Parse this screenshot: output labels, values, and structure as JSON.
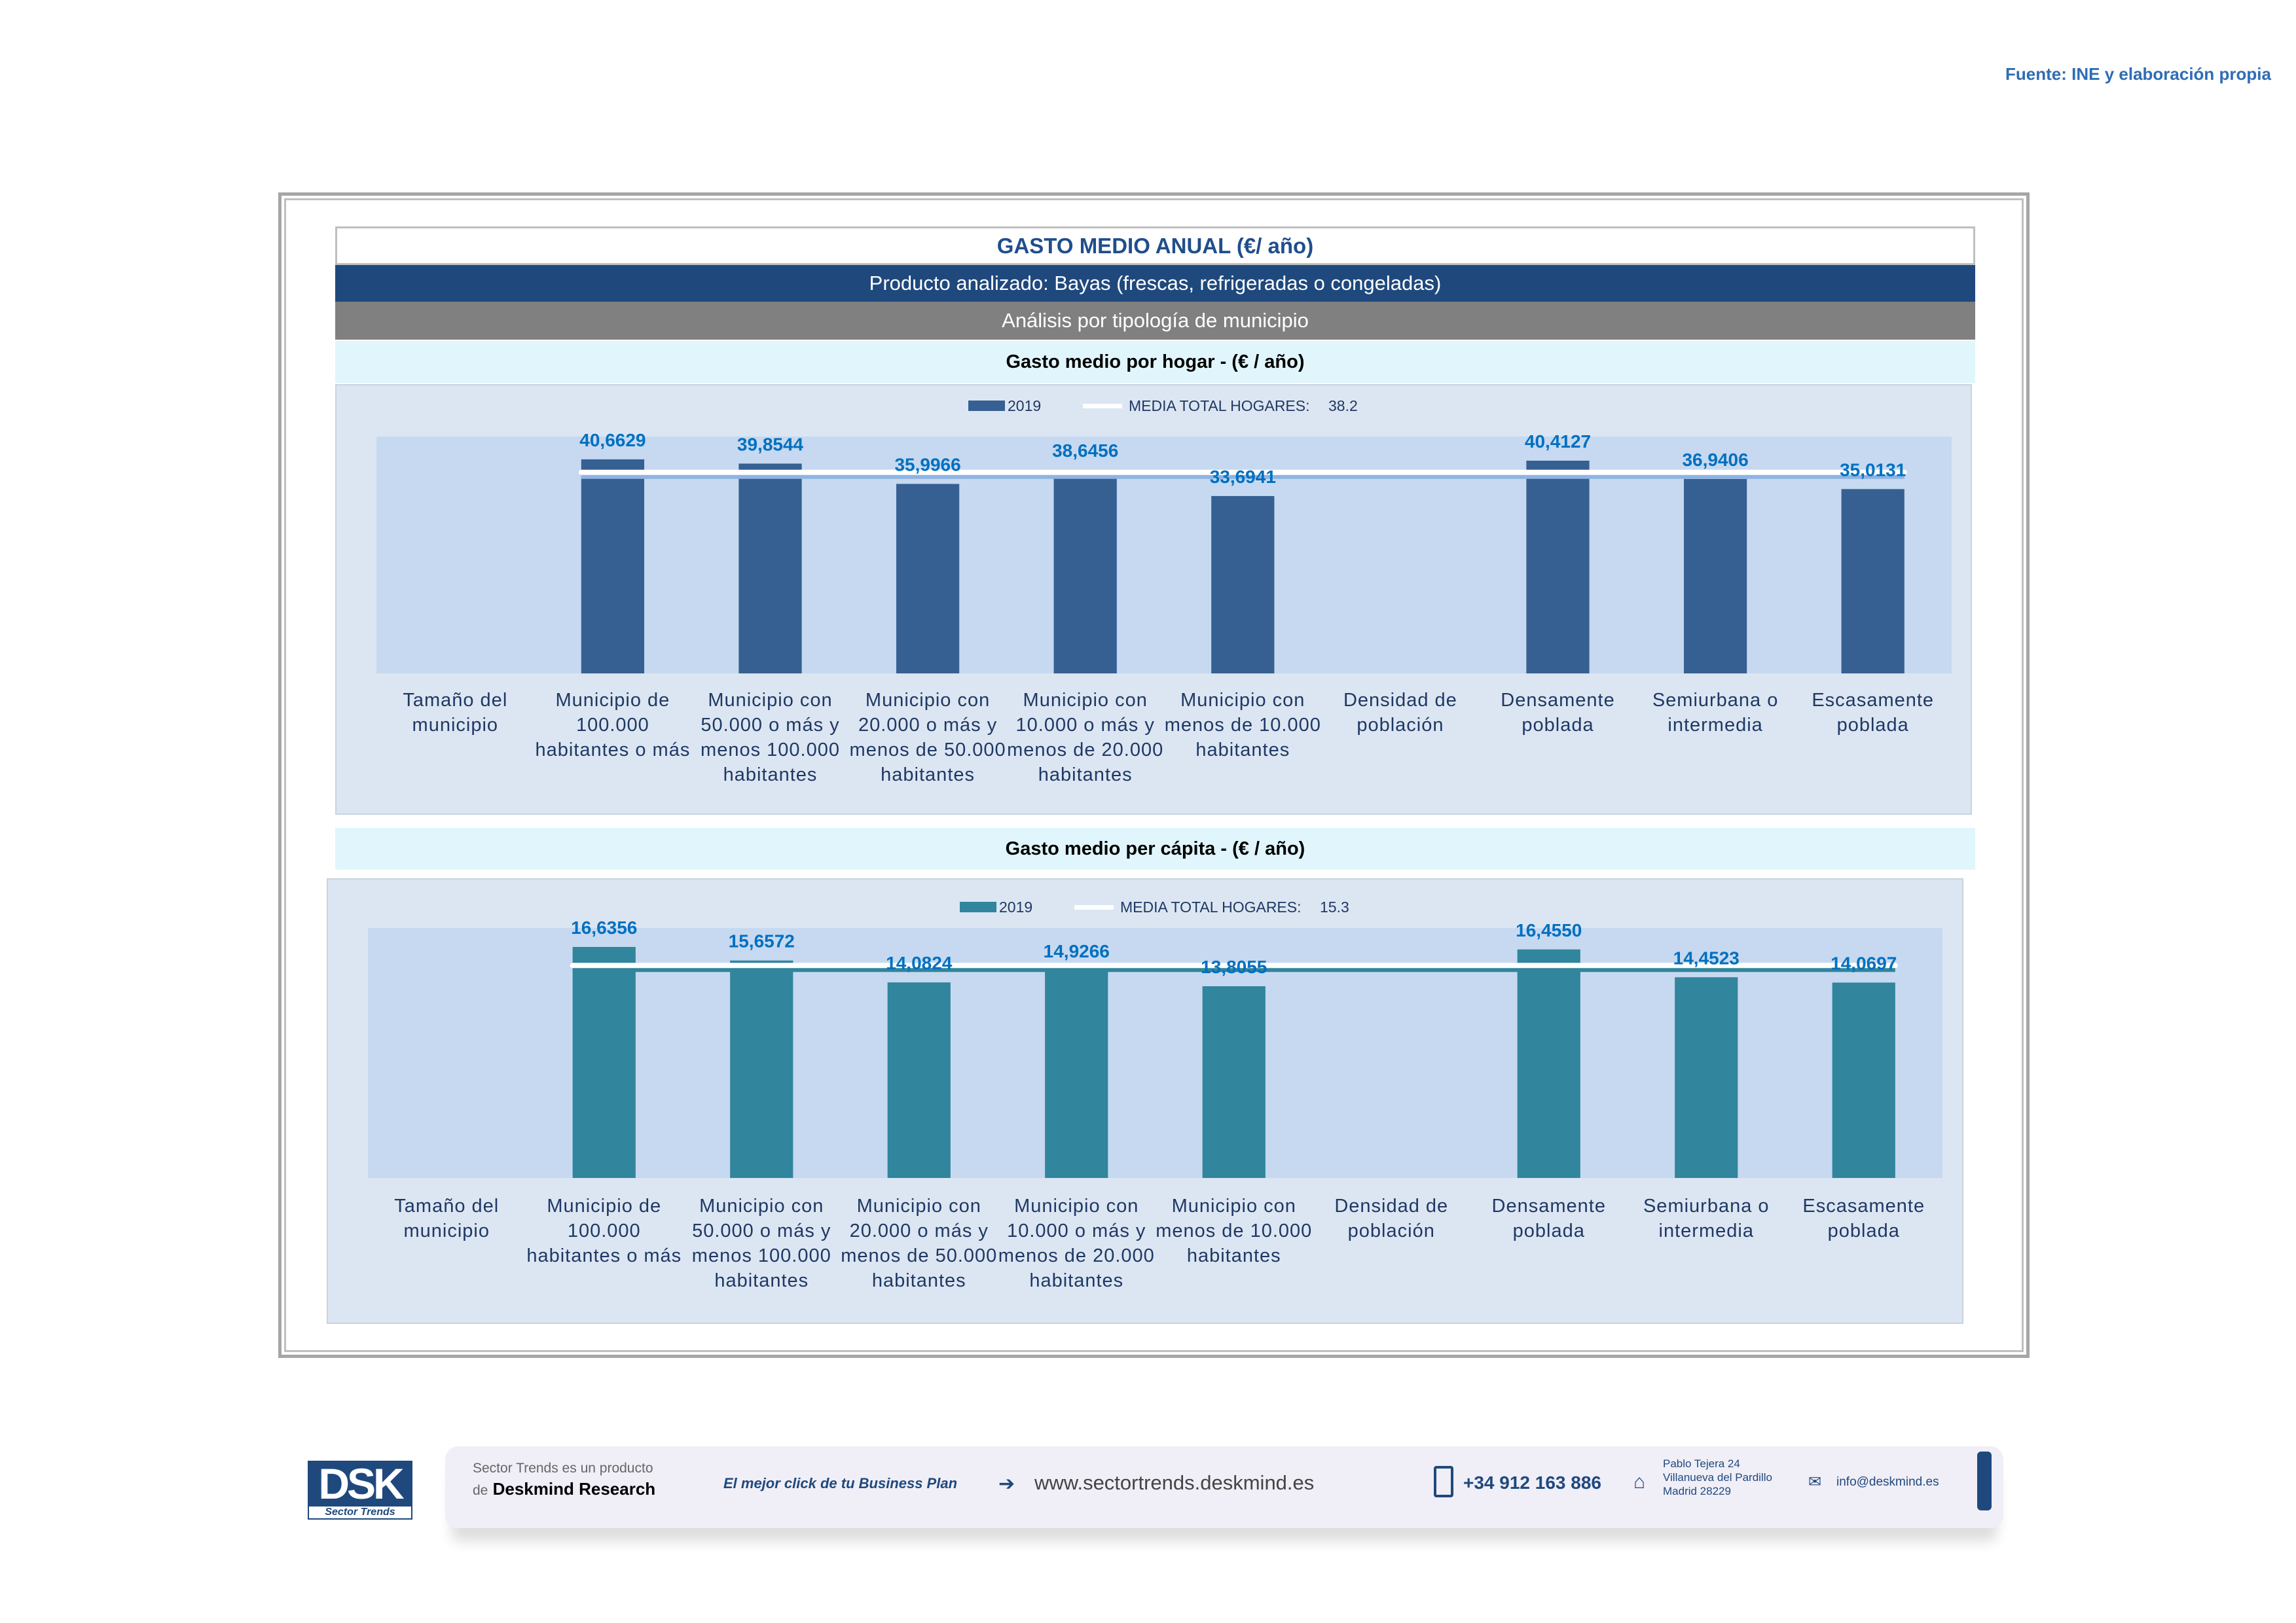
{
  "source": "Fuente: INE y elaboración propia",
  "header": {
    "title": "GASTO MEDIO ANUAL (€/ año)",
    "product": "Producto analizado: Bayas (frescas, refrigeradas o congeladas)",
    "analysis": "Análisis por tipología de municipio"
  },
  "chart_data": [
    {
      "type": "bar",
      "title": "Gasto medio por hogar -  (€ / año)",
      "bar_color": "#366092",
      "mean_line_color": "#ffffff",
      "label_color": "#0070c0",
      "ylim": [
        0,
        45
      ],
      "grid": false,
      "legend_placement": "top",
      "legend": {
        "series": "2019",
        "mean": "MEDIA TOTAL  HOGARES:",
        "mean_value": "38.2"
      },
      "mean": 38.2,
      "categories": [
        [
          "Tamaño del",
          "municipio"
        ],
        [
          "Municipio de",
          "100.000",
          "habitantes o más"
        ],
        [
          "Municipio con",
          "50.000 o más y",
          "menos 100.000",
          "habitantes"
        ],
        [
          "Municipio con",
          "20.000 o más y",
          "menos de 50.000",
          "habitantes"
        ],
        [
          "Municipio con",
          "10.000 o más y",
          "menos de 20.000",
          "habitantes"
        ],
        [
          "Municipio con",
          "menos de 10.000",
          "habitantes"
        ],
        [
          "Densidad de",
          "población"
        ],
        [
          "Densamente",
          "poblada"
        ],
        [
          "Semiurbana o",
          "intermedia"
        ],
        [
          "Escasamente",
          "poblada"
        ]
      ],
      "series": [
        {
          "name": "2019",
          "values": [
            null,
            40.6629,
            39.8544,
            35.9966,
            38.6456,
            33.6941,
            null,
            40.4127,
            36.9406,
            35.0131
          ],
          "labels": [
            "",
            "40,6629",
            "39,8544",
            "35,9966",
            "38,6456",
            "33,6941",
            "",
            "40,4127",
            "36,9406",
            "35,0131"
          ]
        }
      ]
    },
    {
      "type": "bar",
      "title": "Gasto medio per cápita -  (€ / año)",
      "bar_color": "#31859c",
      "mean_line_color": "#ffffff",
      "label_color": "#0070c0",
      "ylim": [
        0,
        18
      ],
      "grid": false,
      "legend_placement": "top",
      "legend": {
        "series": "2019",
        "mean": "MEDIA TOTAL  HOGARES:",
        "mean_value": "15.3"
      },
      "mean": 15.3,
      "categories": [
        [
          "Tamaño del",
          "municipio"
        ],
        [
          "Municipio de",
          "100.000",
          "habitantes o más"
        ],
        [
          "Municipio con",
          "50.000 o más y",
          "menos 100.000",
          "habitantes"
        ],
        [
          "Municipio con",
          "20.000 o más y",
          "menos de 50.000",
          "habitantes"
        ],
        [
          "Municipio con",
          "10.000 o más y",
          "menos de 20.000",
          "habitantes"
        ],
        [
          "Municipio con",
          "menos de 10.000",
          "habitantes"
        ],
        [
          "Densidad de",
          "población"
        ],
        [
          "Densamente",
          "poblada"
        ],
        [
          "Semiurbana o",
          "intermedia"
        ],
        [
          "Escasamente",
          "poblada"
        ]
      ],
      "series": [
        {
          "name": "2019",
          "values": [
            null,
            16.6356,
            15.6572,
            14.0824,
            14.9266,
            13.8055,
            null,
            16.455,
            14.4523,
            14.0697
          ],
          "labels": [
            "",
            "16,6356",
            "15,6572",
            "14,0824",
            "14,9266",
            "13,8055",
            "",
            "16,4550",
            "14,4523",
            "14,0697"
          ]
        }
      ]
    }
  ],
  "footer": {
    "logo": "DSK",
    "logo_sub": "Sector Trends",
    "product_line1": "Sector Trends es un producto",
    "product_de": "de",
    "product_brand": "Deskmind Research",
    "slogan": "El mejor click de tu Business Plan",
    "website": "www.sectortrends.deskmind.es",
    "phone": "+34 912 163 886",
    "address": [
      "Pablo Tejera 24",
      "Villanueva del Pardillo",
      "Madrid 28229"
    ],
    "email": "info@deskmind.es"
  }
}
